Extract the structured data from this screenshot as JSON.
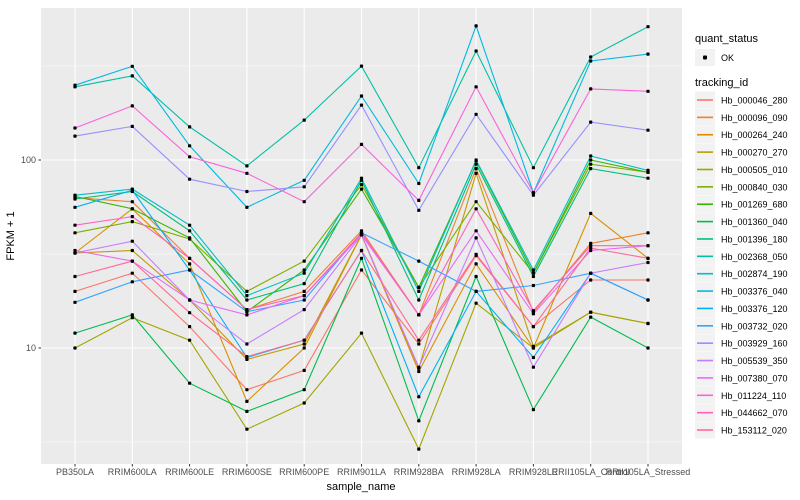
{
  "figure": {
    "ylabel": "FPKM + 1",
    "xlabel": "sample_name",
    "panel_bg": "#EBEBEB",
    "grid_color": "#FFFFFF",
    "tick_text_color": "#4D4D4D",
    "point_color": "#000000",
    "legend": {
      "quant_title": "quant_status",
      "quant_items": [
        {
          "label": "OK",
          "marker": "point-icon",
          "color": "#000000"
        }
      ],
      "tracking_title": "tracking_id",
      "key_bg": "#F2F2F2"
    }
  },
  "chart_data": {
    "type": "line",
    "title": "",
    "xlabel": "sample_name",
    "ylabel": "FPKM + 1",
    "y_scale": "log10",
    "ylim": [
      2.4,
      643
    ],
    "y_major_ticks": [
      100,
      10
    ],
    "y_minor_ticks": [
      316.23,
      31.623,
      3.1623
    ],
    "grid": true,
    "legend_position": "right",
    "marker": "black point (quant_status = OK) at every vertex",
    "categories": [
      "PB350LA",
      "RRIM600LA",
      "RRIM600LE",
      "RRIM600SE",
      "RRIM600PE",
      "RRIM901LA",
      "RRIM928BA",
      "RRIM928LA",
      "RRIM928LE",
      "RRII105LA_Control",
      "RRII105LA_Stressed"
    ],
    "series": [
      {
        "name": "Hb_000046_280",
        "color": "#F8766D",
        "values": [
          20,
          25,
          13,
          6,
          7.6,
          26,
          10.5,
          31,
          13,
          23,
          23
        ]
      },
      {
        "name": "Hb_000096_090",
        "color": "#EA8331",
        "values": [
          63,
          60,
          30,
          16,
          20,
          42,
          15,
          90,
          15.5,
          36,
          41
        ]
      },
      {
        "name": "Hb_000264_240",
        "color": "#D89000",
        "values": [
          32,
          55,
          28,
          5.2,
          10,
          40,
          7.5,
          28,
          10,
          52,
          30
        ]
      },
      {
        "name": "Hb_000270_270",
        "color": "#C09B00",
        "values": [
          32,
          33,
          18,
          8.7,
          10.5,
          40,
          7.8,
          85,
          10.2,
          15.5,
          13.5
        ]
      },
      {
        "name": "Hb_000505_010",
        "color": "#A3A500",
        "values": [
          10,
          14.5,
          11,
          3.7,
          5.1,
          12,
          2.9,
          17.3,
          10,
          15.5,
          13.5
        ]
      },
      {
        "name": "Hb_000840_030",
        "color": "#7CAE00",
        "values": [
          41,
          47,
          38,
          20,
          29,
          74,
          21,
          60,
          25,
          95,
          86
        ]
      },
      {
        "name": "Hb_001269_680",
        "color": "#39B600",
        "values": [
          64,
          55,
          38.5,
          15.6,
          26,
          70,
          21,
          99,
          25,
          100,
          86
        ]
      },
      {
        "name": "Hb_001360_040",
        "color": "#00BB4E",
        "values": [
          12,
          15,
          6.5,
          4.6,
          6,
          30,
          4.1,
          24,
          4.7,
          14.6,
          10
        ]
      },
      {
        "name": "Hb_001396_180",
        "color": "#00BF7D",
        "values": [
          62,
          68,
          42,
          18,
          22,
          78,
          18,
          95,
          24,
          90,
          80
        ]
      },
      {
        "name": "Hb_002368_050",
        "color": "#00C1A3",
        "values": [
          245,
          280,
          150,
          93,
          163,
          316,
          91,
          380,
          91,
          353,
          512
        ]
      },
      {
        "name": "Hb_002874_190",
        "color": "#00BFC4",
        "values": [
          65,
          70,
          45,
          19,
          25,
          80,
          20,
          100,
          26,
          105,
          88
        ]
      },
      {
        "name": "Hb_003376_040",
        "color": "#00BAE0",
        "values": [
          250,
          315,
          119,
          56,
          78,
          219,
          75,
          517,
          67,
          336,
          366
        ]
      },
      {
        "name": "Hb_003376_120",
        "color": "#00B0F6",
        "values": [
          56,
          69,
          26,
          8.9,
          11,
          33,
          5.5,
          20,
          8.9,
          25,
          18
        ]
      },
      {
        "name": "Hb_003732_020",
        "color": "#35A2FF",
        "values": [
          17.5,
          22.5,
          26,
          15.6,
          18,
          41,
          29,
          20,
          21.5,
          25,
          18
        ]
      },
      {
        "name": "Hb_003929_160",
        "color": "#9590FF",
        "values": [
          134,
          151,
          79,
          68,
          72,
          196,
          54,
          175,
          65,
          159,
          144
        ]
      },
      {
        "name": "Hb_005539_350",
        "color": "#C77CFF",
        "values": [
          32,
          37,
          18,
          10.5,
          16,
          40,
          7.9,
          38.5,
          7.9,
          25,
          28.5
        ]
      },
      {
        "name": "Hb_007380_070",
        "color": "#E76BF3",
        "values": [
          33,
          29,
          18,
          15,
          19,
          40,
          15,
          42,
          15.2,
          33,
          35
        ]
      },
      {
        "name": "Hb_011224_110",
        "color": "#FA62DB",
        "values": [
          148,
          194,
          104,
          85,
          60,
          121,
          61,
          245,
          67,
          239,
          232
        ]
      },
      {
        "name": "Hb_044662_070",
        "color": "#FF62BC",
        "values": [
          45,
          50,
          30,
          16,
          19,
          41,
          15,
          55,
          15.8,
          35,
          35
        ]
      },
      {
        "name": "Hb_153112_020",
        "color": "#FF6A98",
        "values": [
          24,
          29,
          15.4,
          9,
          11,
          33,
          11,
          31.5,
          13,
          34,
          30
        ]
      }
    ]
  }
}
